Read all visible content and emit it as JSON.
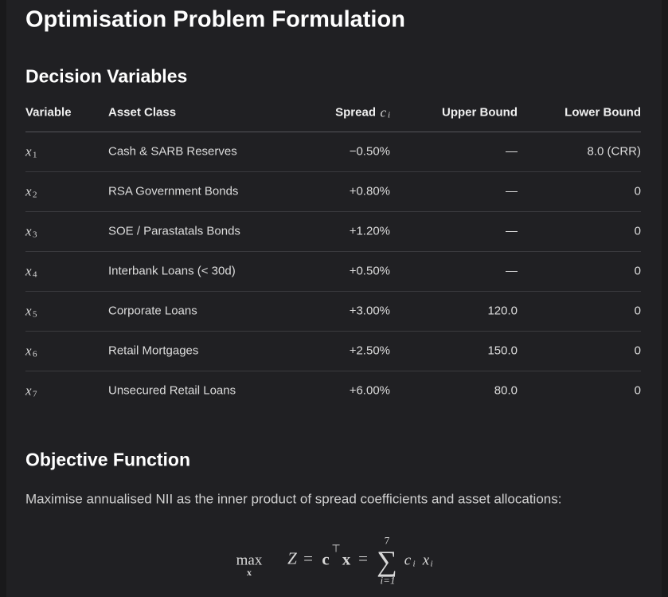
{
  "title": "Optimisation Problem Formulation",
  "decision_variables": {
    "heading": "Decision Variables",
    "table": {
      "columns": [
        "Variable",
        "Asset Class",
        {
          "text": "Spread",
          "symbol": "c",
          "subscript": "i"
        },
        "Upper Bound",
        "Lower Bound"
      ],
      "rows": [
        [
          {
            "symbol": "x",
            "subscript": "1"
          },
          "Cash & SARB Reserves",
          "−0.50%",
          "—",
          "8.0 (CRR)"
        ],
        [
          {
            "symbol": "x",
            "subscript": "2"
          },
          "RSA Government Bonds",
          "+0.80%",
          "—",
          "0"
        ],
        [
          {
            "symbol": "x",
            "subscript": "3"
          },
          "SOE / Parastatals Bonds",
          "+1.20%",
          "—",
          "0"
        ],
        [
          {
            "symbol": "x",
            "subscript": "4"
          },
          "Interbank Loans (< 30d)",
          "+0.50%",
          "—",
          "0"
        ],
        [
          {
            "symbol": "x",
            "subscript": "5"
          },
          "Corporate Loans",
          "+3.00%",
          "120.0",
          "0"
        ],
        [
          {
            "symbol": "x",
            "subscript": "6"
          },
          "Retail Mortgages",
          "+2.50%",
          "150.0",
          "0"
        ],
        [
          {
            "symbol": "x",
            "subscript": "7"
          },
          "Unsecured Retail Loans",
          "+6.00%",
          "80.0",
          "0"
        ]
      ]
    }
  },
  "objective": {
    "heading": "Objective Function",
    "text": "Maximise annualised NII as the inner product of spread coefficients and asset allocations:",
    "formula": {
      "operator": "max",
      "operator_sub": "x",
      "lhs": "Z",
      "eq1": "=",
      "c": "c",
      "transpose": "⊤",
      "x": "x",
      "eq2": "=",
      "sum": "∑",
      "sum_upper": "7",
      "sum_lower": "i=1",
      "term_c": "c",
      "term_c_sub": "i",
      "term_x": "x",
      "term_x_sub": "i"
    }
  }
}
